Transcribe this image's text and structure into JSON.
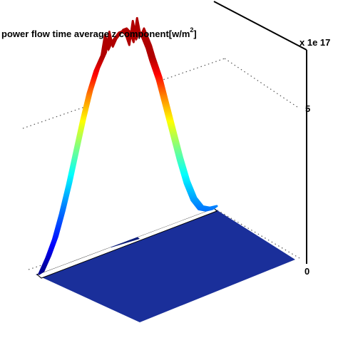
{
  "chart_data": {
    "type": "surface",
    "title_main": "power flow time average z component[w/m",
    "title_sup": "2",
    "title_close": "]",
    "axis_exponent": "x 1e 17",
    "z_ticks": [
      {
        "value": 0,
        "label": "0"
      },
      {
        "value": 5,
        "label": "5"
      }
    ],
    "zlim": [
      0,
      7
    ],
    "grid": true,
    "colormap": "jet",
    "colors": {
      "floor": "#1a2f9a",
      "floor_dark": "#0d1e7a",
      "ridge_low": "#0000b0",
      "ridge_high": "#d80000",
      "frame": "#000000",
      "grid": "#555555"
    },
    "profile": {
      "relative_position": [
        0,
        0.04,
        0.08,
        0.12,
        0.16,
        0.2,
        0.24,
        0.28,
        0.32,
        0.36,
        0.38,
        0.4,
        0.42,
        0.44,
        0.46,
        0.48,
        0.5,
        0.52,
        0.54,
        0.56,
        0.58,
        0.6,
        0.62,
        0.64,
        0.68,
        0.72,
        0.76,
        0.8,
        0.84,
        0.88,
        0.92,
        0.96,
        1
      ],
      "z": [
        0,
        0.4,
        0.9,
        1.6,
        2.4,
        3.3,
        4.2,
        5.0,
        5.6,
        6.0,
        6.6,
        6.1,
        6.3,
        6.4,
        6.5,
        6.5,
        6.35,
        6.0,
        6.7,
        6.1,
        6.3,
        6.0,
        5.7,
        5.3,
        4.6,
        3.7,
        2.8,
        1.9,
        1.1,
        0.5,
        0.15,
        0.03,
        0
      ]
    }
  }
}
